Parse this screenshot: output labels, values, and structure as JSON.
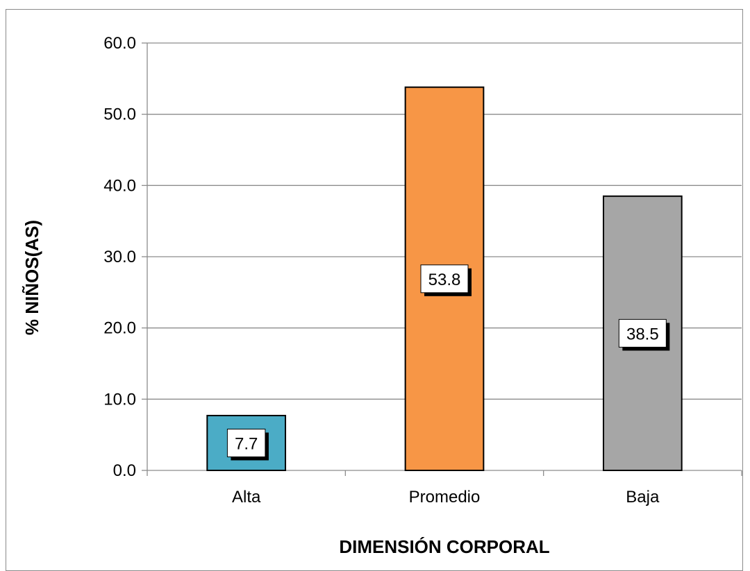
{
  "chart_data": {
    "type": "bar",
    "categories": [
      "Alta",
      "Promedio",
      "Baja"
    ],
    "values": [
      7.7,
      53.8,
      38.5
    ],
    "data_labels": [
      "7.7",
      "53.8",
      "38.5"
    ],
    "colors": [
      "#4bacc6",
      "#f79646",
      "#a6a6a6"
    ],
    "xlabel": "DIMENSIÓN CORPORAL",
    "ylabel": "% NIÑOS(AS)",
    "ylim": [
      0,
      60
    ],
    "yticks": [
      0,
      10,
      20,
      30,
      40,
      50,
      60
    ],
    "ytick_labels": [
      "0.0",
      "10.0",
      "20.0",
      "30.0",
      "40.0",
      "50.0",
      "60.0"
    ],
    "grid": true,
    "legend": false
  }
}
